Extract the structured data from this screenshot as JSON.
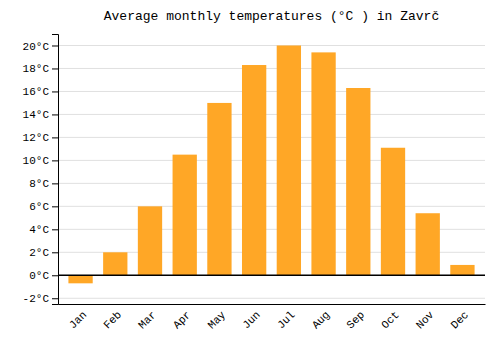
{
  "chart_data": {
    "type": "bar",
    "title": "Average monthly temperatures (°C ) in Zavrč",
    "categories": [
      "Jan",
      "Feb",
      "Mar",
      "Apr",
      "May",
      "Jun",
      "Jul",
      "Aug",
      "Sep",
      "Oct",
      "Nov",
      "Dec"
    ],
    "values": [
      -0.7,
      2.0,
      6.0,
      10.5,
      15.0,
      18.3,
      20.0,
      19.4,
      16.3,
      11.1,
      5.4,
      0.9
    ],
    "color": "#FFA726",
    "ylim": [
      -2.5,
      21
    ],
    "yticks": [
      {
        "value": -2,
        "label": "-2°C"
      },
      {
        "value": 0,
        "label": "0°C"
      },
      {
        "value": 2,
        "label": "2°C"
      },
      {
        "value": 4,
        "label": "4°C"
      },
      {
        "value": 6,
        "label": "6°C"
      },
      {
        "value": 8,
        "label": "8°C"
      },
      {
        "value": 10,
        "label": "10°C"
      },
      {
        "value": 12,
        "label": "12°C"
      },
      {
        "value": 14,
        "label": "14°C"
      },
      {
        "value": 16,
        "label": "16°C"
      },
      {
        "value": 18,
        "label": "18°C"
      },
      {
        "value": 20,
        "label": "20°C"
      }
    ],
    "grid": true
  }
}
